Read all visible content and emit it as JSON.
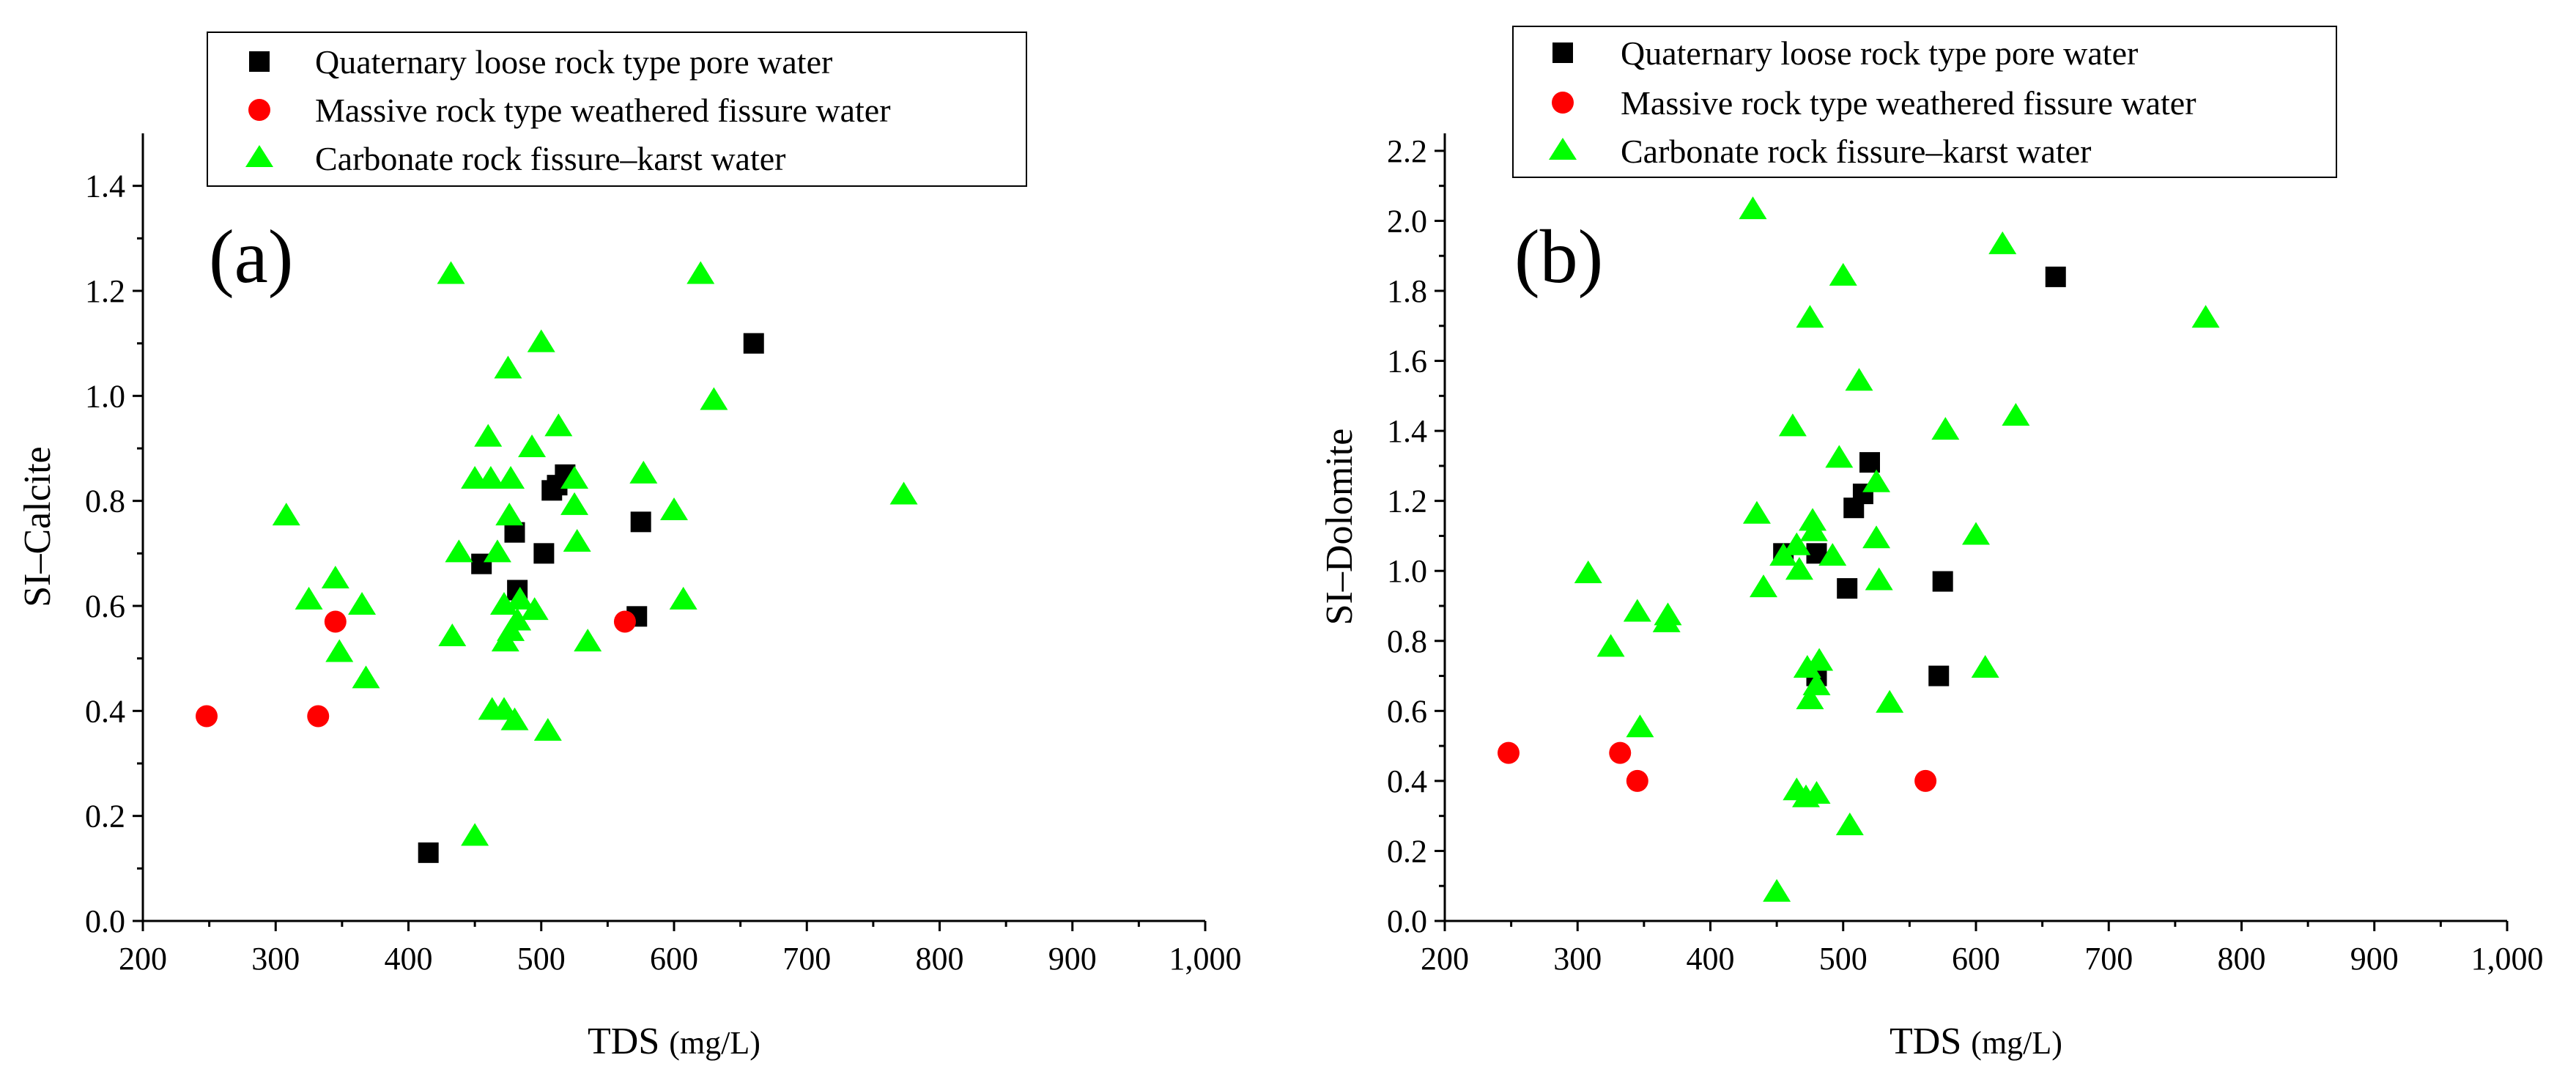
{
  "chart_data": [
    {
      "type": "scatter",
      "panel_label": "(a)",
      "xlabel": "TDS",
      "xunit": "(mg/L)",
      "ylabel": "SI–Calcite",
      "xlim": [
        200,
        1000
      ],
      "ylim": [
        0,
        1.5
      ],
      "xticks": [
        "200",
        "300",
        "400",
        "500",
        "600",
        "700",
        "800",
        "900",
        "1,000"
      ],
      "yticks": [
        "0.0",
        "0.2",
        "0.4",
        "0.6",
        "0.8",
        "1.0",
        "1.2",
        "1.4"
      ],
      "legend": {
        "position": "top-left"
      },
      "series": [
        {
          "name": "Quaternary loose rock type pore water",
          "marker": "square",
          "color": "#000000",
          "points": [
            [
              415,
              0.13
            ],
            [
              455,
              0.68
            ],
            [
              480,
              0.74
            ],
            [
              482,
              0.63
            ],
            [
              502,
              0.7
            ],
            [
              508,
              0.82
            ],
            [
              512,
              0.83
            ],
            [
              518,
              0.85
            ],
            [
              572,
              0.58
            ],
            [
              575,
              0.76
            ],
            [
              660,
              1.1
            ]
          ]
        },
        {
          "name": "Massive rock type weathered fissure water",
          "marker": "circle",
          "color": "#ff0000",
          "points": [
            [
              248,
              0.39
            ],
            [
              332,
              0.39
            ],
            [
              345,
              0.57
            ],
            [
              563,
              0.57
            ]
          ]
        },
        {
          "name": "Carbonate rock fissure–karst water",
          "marker": "triangle",
          "color": "#00ff00",
          "points": [
            [
              308,
              0.77
            ],
            [
              325,
              0.61
            ],
            [
              345,
              0.65
            ],
            [
              348,
              0.51
            ],
            [
              365,
              0.6
            ],
            [
              368,
              0.46
            ],
            [
              432,
              1.23
            ],
            [
              433,
              0.54
            ],
            [
              438,
              0.7
            ],
            [
              450,
              0.84
            ],
            [
              450,
              0.16
            ],
            [
              460,
              0.92
            ],
            [
              462,
              0.84
            ],
            [
              463,
              0.4
            ],
            [
              467,
              0.7
            ],
            [
              472,
              0.4
            ],
            [
              472,
              0.6
            ],
            [
              473,
              0.53
            ],
            [
              475,
              1.05
            ],
            [
              476,
              0.77
            ],
            [
              477,
              0.84
            ],
            [
              477,
              0.55
            ],
            [
              480,
              0.38
            ],
            [
              482,
              0.57
            ],
            [
              484,
              0.61
            ],
            [
              493,
              0.9
            ],
            [
              495,
              0.59
            ],
            [
              500,
              1.1
            ],
            [
              505,
              0.36
            ],
            [
              513,
              0.94
            ],
            [
              525,
              0.84
            ],
            [
              525,
              0.79
            ],
            [
              527,
              0.72
            ],
            [
              535,
              0.53
            ],
            [
              577,
              0.85
            ],
            [
              600,
              0.78
            ],
            [
              607,
              0.61
            ],
            [
              620,
              1.23
            ],
            [
              630,
              0.99
            ],
            [
              773,
              0.81
            ]
          ]
        }
      ]
    },
    {
      "type": "scatter",
      "panel_label": "(b)",
      "xlabel": "TDS",
      "xunit": "(mg/L)",
      "ylabel": "SI–Dolomite",
      "xlim": [
        200,
        1000
      ],
      "ylim": [
        0,
        2.25
      ],
      "xticks": [
        "200",
        "300",
        "400",
        "500",
        "600",
        "700",
        "800",
        "900",
        "1,000"
      ],
      "yticks": [
        "0.0",
        "0.2",
        "0.4",
        "0.6",
        "0.8",
        "1.0",
        "1.2",
        "1.4",
        "1.6",
        "1.8",
        "2.0",
        "2.2"
      ],
      "legend": {
        "position": "top-left"
      },
      "series": [
        {
          "name": "Quaternary loose rock type pore water",
          "marker": "square",
          "color": "#000000",
          "points": [
            [
              455,
              1.05
            ],
            [
              480,
              1.05
            ],
            [
              480,
              0.7
            ],
            [
              503,
              0.95
            ],
            [
              508,
              1.18
            ],
            [
              515,
              1.22
            ],
            [
              520,
              1.31
            ],
            [
              572,
              0.7
            ],
            [
              575,
              0.97
            ],
            [
              660,
              1.84
            ]
          ]
        },
        {
          "name": "Massive rock type weathered fissure water",
          "marker": "circle",
          "color": "#ff0000",
          "points": [
            [
              248,
              0.48
            ],
            [
              332,
              0.48
            ],
            [
              345,
              0.4
            ],
            [
              562,
              0.4
            ]
          ]
        },
        {
          "name": "Carbonate rock fissure–karst water",
          "marker": "triangle",
          "color": "#00ff00",
          "points": [
            [
              308,
              0.99
            ],
            [
              325,
              0.78
            ],
            [
              345,
              0.88
            ],
            [
              347,
              0.55
            ],
            [
              367,
              0.85
            ],
            [
              368,
              0.87
            ],
            [
              432,
              2.03
            ],
            [
              435,
              1.16
            ],
            [
              440,
              0.95
            ],
            [
              450,
              0.08
            ],
            [
              455,
              1.04
            ],
            [
              462,
              1.41
            ],
            [
              465,
              1.07
            ],
            [
              465,
              0.37
            ],
            [
              467,
              1.0
            ],
            [
              472,
              0.35
            ],
            [
              473,
              0.72
            ],
            [
              475,
              1.72
            ],
            [
              475,
              0.63
            ],
            [
              477,
              1.14
            ],
            [
              478,
              1.11
            ],
            [
              480,
              0.67
            ],
            [
              480,
              0.36
            ],
            [
              482,
              0.74
            ],
            [
              492,
              1.04
            ],
            [
              497,
              1.32
            ],
            [
              500,
              1.84
            ],
            [
              505,
              0.27
            ],
            [
              512,
              1.54
            ],
            [
              525,
              1.25
            ],
            [
              525,
              1.09
            ],
            [
              527,
              0.97
            ],
            [
              535,
              0.62
            ],
            [
              577,
              1.4
            ],
            [
              600,
              1.1
            ],
            [
              607,
              0.72
            ],
            [
              620,
              1.93
            ],
            [
              630,
              1.44
            ],
            [
              773,
              1.72
            ]
          ]
        }
      ]
    }
  ]
}
